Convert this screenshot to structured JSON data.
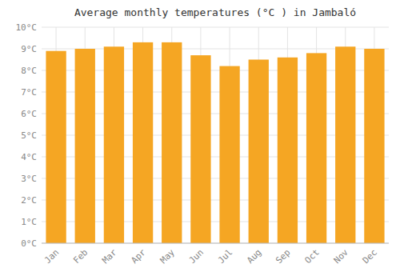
{
  "chart_data": {
    "type": "bar",
    "title": "Average monthly temperatures (°C ) in Jambaló",
    "categories": [
      "Jan",
      "Feb",
      "Mar",
      "Apr",
      "May",
      "Jun",
      "Jul",
      "Aug",
      "Sep",
      "Oct",
      "Nov",
      "Dec"
    ],
    "values": [
      8.9,
      9.0,
      9.1,
      9.3,
      9.3,
      8.7,
      8.2,
      8.5,
      8.6,
      8.8,
      9.1,
      9.0
    ],
    "color": "#F5A623",
    "ylim": [
      0,
      10
    ],
    "yticks": [
      {
        "value": 0,
        "label": "0°C"
      },
      {
        "value": 1,
        "label": "1°C"
      },
      {
        "value": 2,
        "label": "2°C"
      },
      {
        "value": 3,
        "label": "3°C"
      },
      {
        "value": 4,
        "label": "4°C"
      },
      {
        "value": 5,
        "label": "5°C"
      },
      {
        "value": 6,
        "label": "6°C"
      },
      {
        "value": 7,
        "label": "7°C"
      },
      {
        "value": 8,
        "label": "8°C"
      },
      {
        "value": 9,
        "label": "9°C"
      },
      {
        "value": 10,
        "label": "10°C"
      }
    ],
    "grid": true
  }
}
